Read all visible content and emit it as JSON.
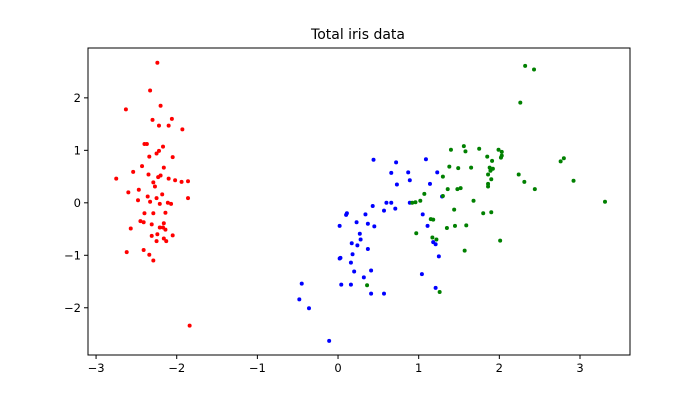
{
  "chart_data": {
    "type": "scatter",
    "title": "Total iris data",
    "xlabel": "",
    "ylabel": "",
    "xlim": [
      -3.1,
      3.62
    ],
    "ylim": [
      -2.9,
      2.95
    ],
    "x_ticks": [
      -3,
      -2,
      -1,
      0,
      1,
      2,
      3
    ],
    "x_tick_labels": [
      "−3",
      "−2",
      "−1",
      "0",
      "1",
      "2",
      "3"
    ],
    "y_ticks": [
      -2,
      -1,
      0,
      1,
      2
    ],
    "y_tick_labels": [
      "−2",
      "−1",
      "0",
      "1",
      "2"
    ],
    "grid": false,
    "legend": "none",
    "series": [
      {
        "color": "#ff0000",
        "points": [
          [
            -2.24,
            2.67
          ],
          [
            -2.33,
            2.14
          ],
          [
            -2.63,
            1.78
          ],
          [
            -2.2,
            1.85
          ],
          [
            -2.3,
            1.58
          ],
          [
            -2.06,
            1.6
          ],
          [
            -2.22,
            1.47
          ],
          [
            -2.1,
            1.47
          ],
          [
            -1.93,
            1.4
          ],
          [
            -2.37,
            1.12
          ],
          [
            -2.4,
            1.12
          ],
          [
            -2.17,
            1.07
          ],
          [
            -2.22,
            0.99
          ],
          [
            -2.25,
            0.94
          ],
          [
            -2.34,
            0.88
          ],
          [
            -2.05,
            0.87
          ],
          [
            -2.43,
            0.7
          ],
          [
            -2.16,
            0.67
          ],
          [
            -2.35,
            0.54
          ],
          [
            -2.2,
            0.52
          ],
          [
            -2.23,
            0.49
          ],
          [
            -2.54,
            0.59
          ],
          [
            -2.1,
            0.46
          ],
          [
            -1.86,
            0.41
          ],
          [
            -1.94,
            0.4
          ],
          [
            -2.75,
            0.46
          ],
          [
            -2.29,
            0.39
          ],
          [
            -2.27,
            0.31
          ],
          [
            -2.02,
            0.43
          ],
          [
            -2.47,
            0.25
          ],
          [
            -2.6,
            0.2
          ],
          [
            -2.18,
            0.16
          ],
          [
            -2.36,
            0.12
          ],
          [
            -2.25,
            0.09
          ],
          [
            -1.86,
            0.09
          ],
          [
            -2.48,
            0.05
          ],
          [
            -2.33,
            0.02
          ],
          [
            -2.11,
            0.0
          ],
          [
            -2.21,
            -0.02
          ],
          [
            -2.07,
            -0.02
          ],
          [
            -2.4,
            -0.2
          ],
          [
            -2.29,
            -0.2
          ],
          [
            -2.14,
            -0.19
          ],
          [
            -2.45,
            -0.35
          ],
          [
            -2.41,
            -0.37
          ],
          [
            -2.31,
            -0.41
          ],
          [
            -2.16,
            -0.39
          ],
          [
            -2.57,
            -0.49
          ],
          [
            -2.21,
            -0.47
          ],
          [
            -2.17,
            -0.47
          ],
          [
            -2.14,
            -0.51
          ],
          [
            -2.24,
            -0.6
          ],
          [
            -2.05,
            -0.62
          ],
          [
            -2.31,
            -0.63
          ],
          [
            -2.16,
            -0.68
          ],
          [
            -2.25,
            -0.73
          ],
          [
            -2.13,
            -0.73
          ],
          [
            -2.41,
            -0.9
          ],
          [
            -2.62,
            -0.94
          ],
          [
            -2.34,
            -0.99
          ],
          [
            -2.29,
            -1.1
          ],
          [
            -1.84,
            -2.34
          ]
        ]
      },
      {
        "color": "#0000ff",
        "points": [
          [
            0.44,
            0.82
          ],
          [
            0.72,
            0.77
          ],
          [
            0.87,
            0.58
          ],
          [
            1.09,
            0.83
          ],
          [
            0.66,
            0.57
          ],
          [
            0.73,
            0.35
          ],
          [
            0.89,
            0.43
          ],
          [
            1.14,
            0.36
          ],
          [
            1.23,
            0.58
          ],
          [
            1.29,
            0.12
          ],
          [
            0.89,
            0.0
          ],
          [
            0.66,
            0.0
          ],
          [
            0.6,
            0.0
          ],
          [
            0.71,
            -0.11
          ],
          [
            0.57,
            -0.15
          ],
          [
            0.43,
            -0.06
          ],
          [
            1.05,
            -0.22
          ],
          [
            0.34,
            -0.22
          ],
          [
            0.11,
            -0.2
          ],
          [
            0.1,
            -0.23
          ],
          [
            0.02,
            -0.44
          ],
          [
            0.23,
            -0.37
          ],
          [
            0.37,
            -0.4
          ],
          [
            0.45,
            -0.45
          ],
          [
            1.11,
            -0.44
          ],
          [
            0.27,
            -0.59
          ],
          [
            0.28,
            -0.7
          ],
          [
            0.17,
            -0.77
          ],
          [
            0.24,
            -0.81
          ],
          [
            0.37,
            -0.88
          ],
          [
            1.18,
            -0.75
          ],
          [
            1.21,
            -0.79
          ],
          [
            0.18,
            -0.98
          ],
          [
            0.03,
            -1.05
          ],
          [
            0.02,
            -1.06
          ],
          [
            0.16,
            -1.14
          ],
          [
            1.25,
            -1.02
          ],
          [
            0.2,
            -1.31
          ],
          [
            0.41,
            -1.29
          ],
          [
            1.04,
            -1.36
          ],
          [
            0.32,
            -1.42
          ],
          [
            -0.45,
            -1.54
          ],
          [
            0.04,
            -1.56
          ],
          [
            0.16,
            -1.56
          ],
          [
            0.41,
            -1.73
          ],
          [
            0.57,
            -1.73
          ],
          [
            1.21,
            -1.62
          ],
          [
            -0.48,
            -1.84
          ],
          [
            -0.36,
            -2.01
          ],
          [
            -0.11,
            -2.63
          ]
        ]
      },
      {
        "color": "#008000",
        "points": [
          [
            2.32,
            2.61
          ],
          [
            2.43,
            2.54
          ],
          [
            2.26,
            1.91
          ],
          [
            1.56,
            1.08
          ],
          [
            1.75,
            1.03
          ],
          [
            1.4,
            1.01
          ],
          [
            1.58,
            0.98
          ],
          [
            1.99,
            1.01
          ],
          [
            2.03,
            0.97
          ],
          [
            2.03,
            0.9
          ],
          [
            2.02,
            0.86
          ],
          [
            1.85,
            0.88
          ],
          [
            1.91,
            0.8
          ],
          [
            2.8,
            0.85
          ],
          [
            2.76,
            0.79
          ],
          [
            1.38,
            0.69
          ],
          [
            1.49,
            0.66
          ],
          [
            1.65,
            0.67
          ],
          [
            1.88,
            0.67
          ],
          [
            1.92,
            0.65
          ],
          [
            1.89,
            0.61
          ],
          [
            1.86,
            0.54
          ],
          [
            2.24,
            0.54
          ],
          [
            1.3,
            0.5
          ],
          [
            1.9,
            0.45
          ],
          [
            1.86,
            0.36
          ],
          [
            1.86,
            0.31
          ],
          [
            2.31,
            0.4
          ],
          [
            2.92,
            0.42
          ],
          [
            1.52,
            0.28
          ],
          [
            1.48,
            0.26
          ],
          [
            2.44,
            0.26
          ],
          [
            1.36,
            0.26
          ],
          [
            1.07,
            0.17
          ],
          [
            1.3,
            0.13
          ],
          [
            1.68,
            0.04
          ],
          [
            1.02,
            0.04
          ],
          [
            0.96,
            0.01
          ],
          [
            0.92,
            0.0
          ],
          [
            3.31,
            0.02
          ],
          [
            1.44,
            -0.13
          ],
          [
            1.9,
            -0.18
          ],
          [
            1.8,
            -0.2
          ],
          [
            1.59,
            -0.43
          ],
          [
            1.45,
            -0.44
          ],
          [
            1.35,
            -0.48
          ],
          [
            1.15,
            -0.31
          ],
          [
            1.18,
            -0.32
          ],
          [
            0.97,
            -0.58
          ],
          [
            1.17,
            -0.66
          ],
          [
            1.22,
            -0.7
          ],
          [
            2.01,
            -0.72
          ],
          [
            1.57,
            -0.91
          ],
          [
            0.36,
            -1.57
          ],
          [
            1.26,
            -1.7
          ]
        ]
      }
    ]
  }
}
